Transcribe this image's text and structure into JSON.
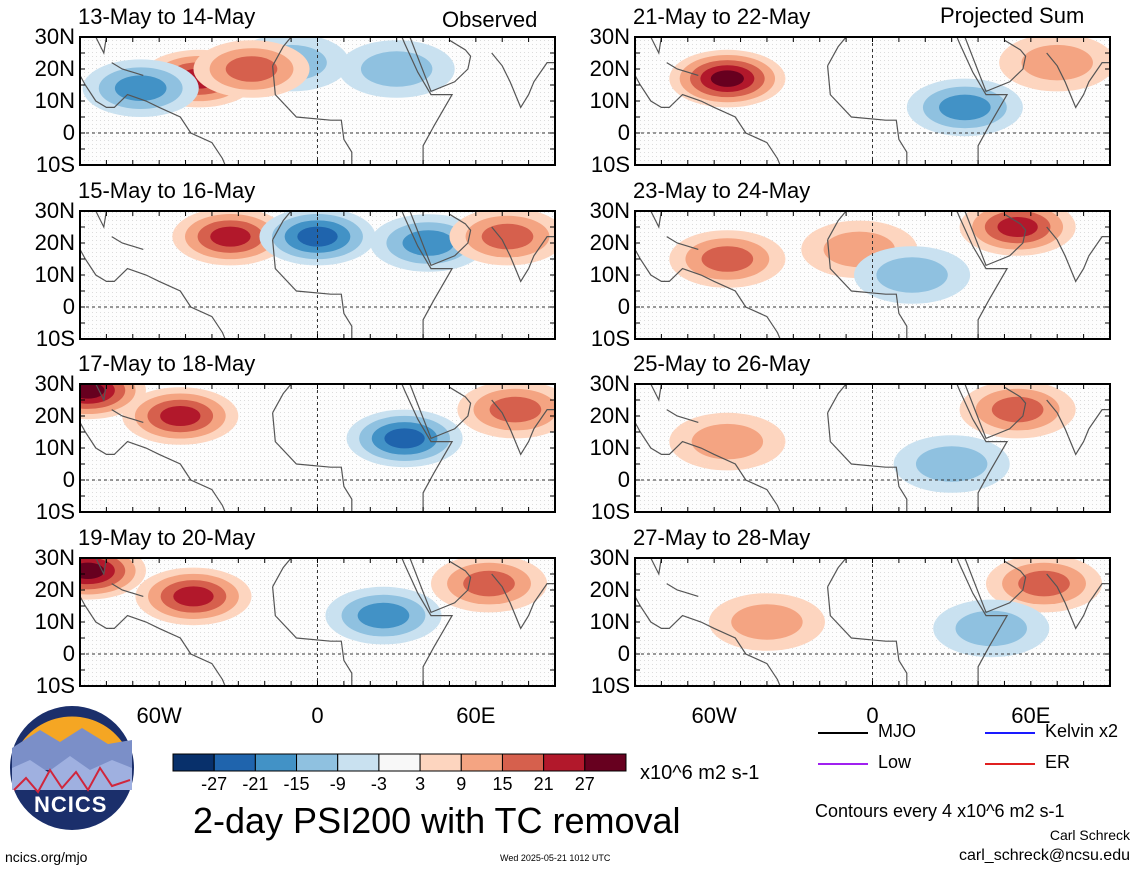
{
  "figure": {
    "title": "2-day PSI200 with TC removal",
    "units": "x10^6 m2 s-1",
    "contour_note": "Contours every 4 x10^6 m2 s-1",
    "author": "Carl Schreck",
    "email": "carl_schreck@ncsu.edu",
    "url": "ncics.org/mjo",
    "timestamp": "Wed 2025-05-21 1012 UTC",
    "logo_text": "NCICS",
    "column_tags": {
      "left": "Observed",
      "right": "Projected Sum"
    }
  },
  "legend": {
    "lines": [
      {
        "label": "MJO",
        "color": "#000000"
      },
      {
        "label": "Kelvin x2",
        "color": "#1a1aff"
      },
      {
        "label": "Low",
        "color": "#a020f0"
      },
      {
        "label": "ER",
        "color": "#e02020"
      }
    ]
  },
  "chart_data": {
    "type": "heatmap",
    "variable": "PSI200",
    "lat_ticks": [
      "30N",
      "20N",
      "10N",
      "0",
      "10S"
    ],
    "lon_ticks": [
      "60W",
      "0",
      "60E"
    ],
    "colorbar": {
      "ticks": [
        "-27",
        "-21",
        "-15",
        "-9",
        "-3",
        "3",
        "9",
        "15",
        "21",
        "27"
      ],
      "colors": [
        "#08306b",
        "#1f64ad",
        "#4292c6",
        "#8fc1e0",
        "#c9e1f0",
        "#f8f8f8",
        "#fdd5bf",
        "#f4a482",
        "#d6604d",
        "#b2182b",
        "#67001f"
      ]
    },
    "panels": [
      {
        "column": "Observed",
        "period": "13-May to 14-May",
        "anomalies": [
          {
            "lon": -45,
            "lat": 17,
            "value": 21
          },
          {
            "lon": -67,
            "lat": 14,
            "value": -15
          },
          {
            "lon": -10,
            "lat": 22,
            "value": -9
          },
          {
            "lon": 30,
            "lat": 20,
            "value": -9
          },
          {
            "lon": -25,
            "lat": 20,
            "value": 15
          }
        ]
      },
      {
        "column": "Observed",
        "period": "15-May to 16-May",
        "anomalies": [
          {
            "lon": -33,
            "lat": 22,
            "value": 21
          },
          {
            "lon": 0,
            "lat": 22,
            "value": -21
          },
          {
            "lon": 42,
            "lat": 20,
            "value": -15
          },
          {
            "lon": 72,
            "lat": 22,
            "value": 15
          }
        ]
      },
      {
        "column": "Observed",
        "period": "17-May to 18-May",
        "anomalies": [
          {
            "lon": -52,
            "lat": 20,
            "value": 21
          },
          {
            "lon": 33,
            "lat": 13,
            "value": -21
          },
          {
            "lon": 75,
            "lat": 22,
            "value": 15
          },
          {
            "lon": -87,
            "lat": 28,
            "value": 27
          }
        ]
      },
      {
        "column": "Observed",
        "period": "19-May to 20-May",
        "anomalies": [
          {
            "lon": -47,
            "lat": 18,
            "value": 21
          },
          {
            "lon": 25,
            "lat": 12,
            "value": -15
          },
          {
            "lon": -87,
            "lat": 26,
            "value": 27
          },
          {
            "lon": 65,
            "lat": 22,
            "value": 15
          }
        ]
      },
      {
        "column": "Projected Sum",
        "period": "21-May to 22-May",
        "anomalies": [
          {
            "lon": -55,
            "lat": 17,
            "value": 27
          },
          {
            "lon": 35,
            "lat": 8,
            "value": -15
          },
          {
            "lon": 70,
            "lat": 22,
            "value": 9
          }
        ]
      },
      {
        "column": "Projected Sum",
        "period": "23-May to 24-May",
        "anomalies": [
          {
            "lon": -55,
            "lat": 15,
            "value": 15
          },
          {
            "lon": -5,
            "lat": 18,
            "value": 9
          },
          {
            "lon": 55,
            "lat": 25,
            "value": 21
          },
          {
            "lon": 15,
            "lat": 10,
            "value": -9
          }
        ]
      },
      {
        "column": "Projected Sum",
        "period": "25-May to 26-May",
        "anomalies": [
          {
            "lon": -55,
            "lat": 12,
            "value": 9
          },
          {
            "lon": 55,
            "lat": 22,
            "value": 15
          },
          {
            "lon": 30,
            "lat": 5,
            "value": -9
          }
        ]
      },
      {
        "column": "Projected Sum",
        "period": "27-May to 28-May",
        "anomalies": [
          {
            "lon": -40,
            "lat": 10,
            "value": 9
          },
          {
            "lon": 65,
            "lat": 22,
            "value": 15
          },
          {
            "lon": 45,
            "lat": 8,
            "value": -9
          }
        ]
      }
    ]
  }
}
